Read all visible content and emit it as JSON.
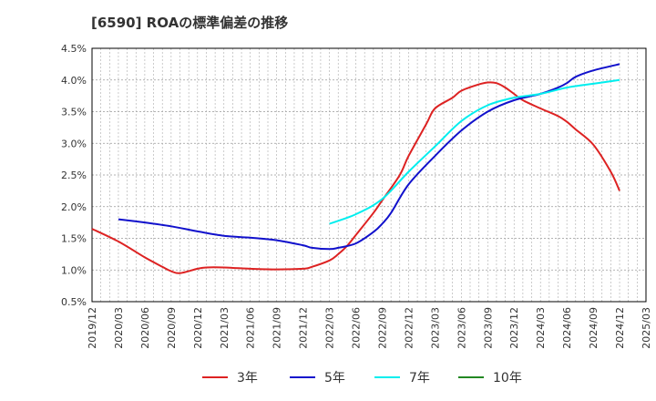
{
  "chart_data": {
    "type": "line",
    "title": "[6590]  ROAの標準偏差の推移",
    "xlabel": "",
    "ylabel": "",
    "ylim": [
      0.5,
      4.5
    ],
    "y_ticks": [
      "0.5%",
      "1.0%",
      "1.5%",
      "2.0%",
      "2.5%",
      "3.0%",
      "3.5%",
      "4.0%",
      "4.5%"
    ],
    "x_ticks": [
      "2019/12",
      "2020/03",
      "2020/06",
      "2020/09",
      "2020/12",
      "2021/03",
      "2021/06",
      "2021/09",
      "2021/12",
      "2022/03",
      "2022/06",
      "2022/09",
      "2022/12",
      "2023/03",
      "2023/06",
      "2023/09",
      "2023/12",
      "2024/03",
      "2024/06",
      "2024/09",
      "2024/12",
      "2025/03"
    ],
    "grid": true,
    "legend_position": "bottom",
    "series": [
      {
        "name": "3年",
        "color": "#dd2222",
        "x": [
          "2019/12",
          "2020/03",
          "2020/06",
          "2020/08",
          "2020/09",
          "2020/10",
          "2020/12",
          "2021/01",
          "2021/03",
          "2021/06",
          "2021/09",
          "2021/12",
          "2022/01",
          "2022/03",
          "2022/04",
          "2022/05",
          "2022/06",
          "2022/08",
          "2022/09",
          "2022/11",
          "2022/12",
          "2023/02",
          "2023/03",
          "2023/05",
          "2023/06",
          "2023/08",
          "2023/09",
          "2023/10",
          "2023/11",
          "2023/12",
          "2024/01",
          "2024/03",
          "2024/05",
          "2024/06",
          "2024/07",
          "2024/09",
          "2024/11",
          "2024/12"
        ],
        "values": [
          1.65,
          1.45,
          1.2,
          1.05,
          0.98,
          0.95,
          1.02,
          1.04,
          1.04,
          1.02,
          1.01,
          1.02,
          1.05,
          1.15,
          1.25,
          1.38,
          1.55,
          1.9,
          2.1,
          2.5,
          2.8,
          3.3,
          3.55,
          3.72,
          3.83,
          3.93,
          3.96,
          3.95,
          3.88,
          3.78,
          3.68,
          3.55,
          3.43,
          3.34,
          3.22,
          2.98,
          2.55,
          2.25
        ]
      },
      {
        "name": "5年",
        "color": "#1111cc",
        "x": [
          "2020/03",
          "2020/06",
          "2020/09",
          "2020/12",
          "2021/03",
          "2021/06",
          "2021/09",
          "2021/12",
          "2022/01",
          "2022/03",
          "2022/04",
          "2022/06",
          "2022/08",
          "2022/09",
          "2022/10",
          "2022/12",
          "2023/03",
          "2023/06",
          "2023/09",
          "2023/12",
          "2024/03",
          "2024/05",
          "2024/06",
          "2024/07",
          "2024/09",
          "2024/12"
        ],
        "values": [
          1.8,
          1.75,
          1.69,
          1.61,
          1.54,
          1.51,
          1.47,
          1.39,
          1.35,
          1.33,
          1.35,
          1.42,
          1.6,
          1.73,
          1.9,
          2.35,
          2.8,
          3.2,
          3.5,
          3.68,
          3.78,
          3.88,
          3.95,
          4.05,
          4.15,
          4.25
        ]
      },
      {
        "name": "7年",
        "color": "#00eeee",
        "x": [
          "2022/03",
          "2022/06",
          "2022/09",
          "2022/12",
          "2023/03",
          "2023/06",
          "2023/09",
          "2023/12",
          "2024/03",
          "2024/06",
          "2024/09",
          "2024/12"
        ],
        "values": [
          1.73,
          1.88,
          2.12,
          2.55,
          2.95,
          3.35,
          3.6,
          3.72,
          3.78,
          3.88,
          3.94,
          4.0
        ]
      },
      {
        "name": "10年",
        "color": "#228822",
        "x": [],
        "values": []
      }
    ]
  }
}
